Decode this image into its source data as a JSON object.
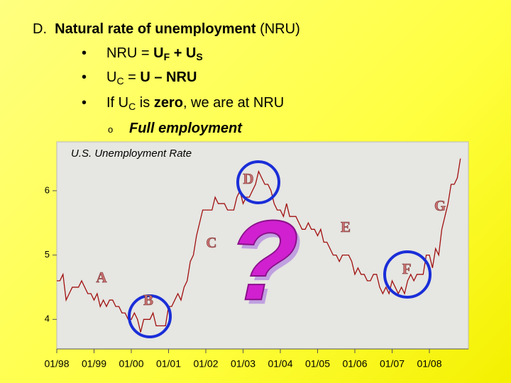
{
  "slide": {
    "heading": {
      "label": "D.",
      "bold": "Natural rate of unemployment",
      "rest": "(NRU)"
    },
    "bullet_symbol": "•",
    "sub_bullet_symbol": "o",
    "bullets": [
      [
        "NRU = ",
        "U",
        "F",
        " + U",
        "S"
      ],
      [
        "U",
        "C",
        " = ",
        "U – NRU"
      ],
      [
        "If U",
        "C",
        " is ",
        "zero",
        ", we are at NRU"
      ]
    ],
    "sub_bullet": "Full employment"
  },
  "chart_data": {
    "type": "line",
    "title": "U.S. Unemployment Rate",
    "x": [
      "01/98",
      "02/98",
      "03/98",
      "04/98",
      "05/98",
      "06/98",
      "07/98",
      "08/98",
      "09/98",
      "10/98",
      "11/98",
      "12/98",
      "01/99",
      "02/99",
      "03/99",
      "04/99",
      "05/99",
      "06/99",
      "07/99",
      "08/99",
      "09/99",
      "10/99",
      "11/99",
      "12/99",
      "01/00",
      "02/00",
      "03/00",
      "04/00",
      "05/00",
      "06/00",
      "07/00",
      "08/00",
      "09/00",
      "10/00",
      "11/00",
      "12/00",
      "01/01",
      "02/01",
      "03/01",
      "04/01",
      "05/01",
      "06/01",
      "07/01",
      "08/01",
      "09/01",
      "10/01",
      "11/01",
      "12/01",
      "01/02",
      "02/02",
      "03/02",
      "04/02",
      "05/02",
      "06/02",
      "07/02",
      "08/02",
      "09/02",
      "10/02",
      "11/02",
      "12/02",
      "01/03",
      "02/03",
      "03/03",
      "04/03",
      "05/03",
      "06/03",
      "07/03",
      "08/03",
      "09/03",
      "10/03",
      "11/03",
      "12/03",
      "01/04",
      "02/04",
      "03/04",
      "04/04",
      "05/04",
      "06/04",
      "07/04",
      "08/04",
      "09/04",
      "10/04",
      "11/04",
      "12/04",
      "01/05",
      "02/05",
      "03/05",
      "04/05",
      "05/05",
      "06/05",
      "07/05",
      "08/05",
      "09/05",
      "10/05",
      "11/05",
      "12/05",
      "01/06",
      "02/06",
      "03/06",
      "04/06",
      "05/06",
      "06/06",
      "07/06",
      "08/06",
      "09/06",
      "10/06",
      "11/06",
      "12/06",
      "01/07",
      "02/07",
      "03/07",
      "04/07",
      "05/07",
      "06/07",
      "07/07",
      "08/07",
      "09/07",
      "10/07",
      "11/07",
      "12/07",
      "01/08",
      "02/08",
      "03/08",
      "04/08",
      "05/08",
      "06/08",
      "07/08",
      "08/08",
      "09/08",
      "10/08",
      "11/08"
    ],
    "series": [
      {
        "name": "Unemployment rate",
        "color": "#a01010",
        "values": [
          4.6,
          4.6,
          4.7,
          4.3,
          4.4,
          4.5,
          4.5,
          4.5,
          4.6,
          4.5,
          4.4,
          4.4,
          4.3,
          4.4,
          4.2,
          4.3,
          4.2,
          4.3,
          4.3,
          4.2,
          4.2,
          4.1,
          4.1,
          4.0,
          4.0,
          4.1,
          4.0,
          3.8,
          4.0,
          4.0,
          4.0,
          4.1,
          3.9,
          3.9,
          3.9,
          3.9,
          4.2,
          4.2,
          4.3,
          4.4,
          4.3,
          4.5,
          4.6,
          4.9,
          5.0,
          5.3,
          5.5,
          5.7,
          5.7,
          5.7,
          5.7,
          5.9,
          5.8,
          5.8,
          5.8,
          5.7,
          5.7,
          5.7,
          5.9,
          6.0,
          5.8,
          5.9,
          5.9,
          6.0,
          6.1,
          6.3,
          6.2,
          6.1,
          6.1,
          6.0,
          5.8,
          5.7,
          5.7,
          5.6,
          5.8,
          5.6,
          5.6,
          5.6,
          5.5,
          5.4,
          5.4,
          5.5,
          5.4,
          5.4,
          5.3,
          5.4,
          5.2,
          5.2,
          5.1,
          5.0,
          5.0,
          4.9,
          5.0,
          5.0,
          5.0,
          4.9,
          4.7,
          4.8,
          4.7,
          4.7,
          4.6,
          4.6,
          4.7,
          4.7,
          4.5,
          4.4,
          4.5,
          4.4,
          4.6,
          4.5,
          4.4,
          4.5,
          4.4,
          4.6,
          4.7,
          4.6,
          4.7,
          4.7,
          4.7,
          5.0,
          5.0,
          4.8,
          5.1,
          5.0,
          5.4,
          5.6,
          5.8,
          6.1,
          6.1,
          6.2,
          6.5
        ]
      }
    ],
    "xticks": [
      "01/98",
      "01/99",
      "01/00",
      "01/01",
      "01/02",
      "01/03",
      "01/04",
      "01/05",
      "01/06",
      "01/07",
      "01/08"
    ],
    "ylim": [
      3.54,
      6.76
    ],
    "yticks": [
      4,
      5,
      6
    ],
    "annotations": [
      "A",
      "B",
      "C",
      "D",
      "E",
      "F",
      "G",
      "?"
    ]
  }
}
